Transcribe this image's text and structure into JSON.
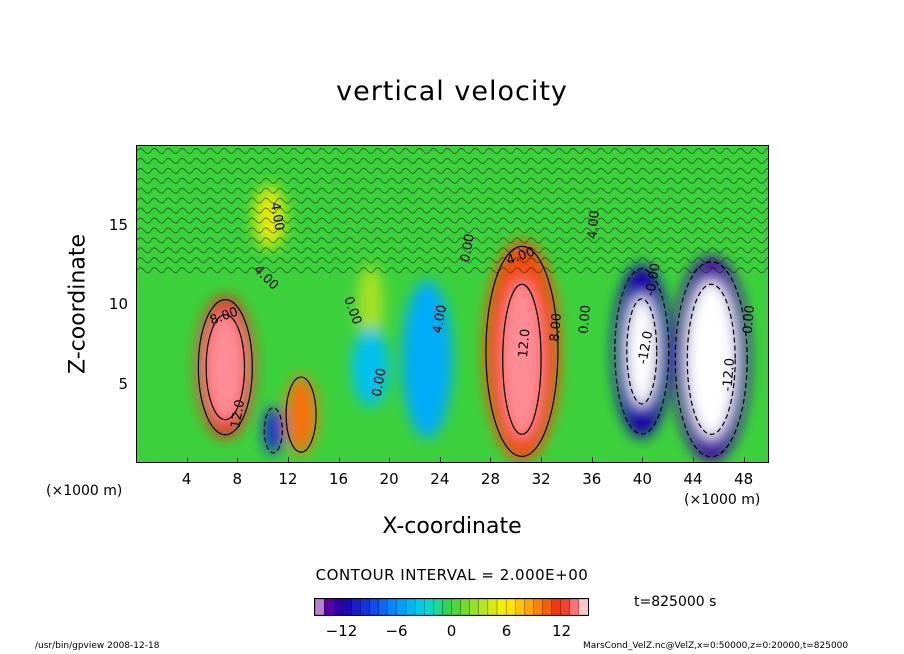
{
  "chart_data": {
    "type": "heatmap",
    "title": "vertical velocity",
    "xlabel": "X-coordinate",
    "ylabel": "Z-coordinate",
    "x_unit": "(×1000 m)",
    "y_unit": "(×1000 m)",
    "xlim": [
      0,
      50
    ],
    "ylim": [
      0,
      20
    ],
    "x_ticks": [
      4,
      8,
      12,
      16,
      20,
      24,
      28,
      32,
      36,
      40,
      44,
      48
    ],
    "y_ticks": [
      5,
      10,
      15
    ],
    "contour_interval_text": "CONTOUR INTERVAL = 2.000E+00",
    "time_label": "t=825000 s",
    "colorbar": {
      "min": -15,
      "max": 15,
      "ticks": [
        -12,
        -6,
        0,
        6,
        12
      ]
    },
    "cells": [
      {
        "x": 7,
        "z": 6,
        "w": 4.5,
        "h": 9,
        "value": 12
      },
      {
        "x": 7,
        "z": 6,
        "w": 3.2,
        "h": 7,
        "value": 14
      },
      {
        "x": 13,
        "z": 3,
        "w": 2.5,
        "h": 5,
        "value": 10
      },
      {
        "x": 10.8,
        "z": 2,
        "w": 1.5,
        "h": 3,
        "value": -10
      },
      {
        "x": 10.5,
        "z": 15.5,
        "w": 2.4,
        "h": 4,
        "value": 5
      },
      {
        "x": 18.5,
        "z": 10,
        "w": 2,
        "h": 5,
        "value": 3
      },
      {
        "x": 18.5,
        "z": 6,
        "w": 3,
        "h": 5,
        "value": -4
      },
      {
        "x": 23,
        "z": 6.5,
        "w": 4,
        "h": 10,
        "value": -5
      },
      {
        "x": 30.5,
        "z": 7,
        "w": 6,
        "h": 14,
        "value": 11
      },
      {
        "x": 30.5,
        "z": 6.5,
        "w": 3.2,
        "h": 10,
        "value": 14
      },
      {
        "x": 40,
        "z": 7,
        "w": 4.5,
        "h": 11,
        "value": -12
      },
      {
        "x": 45.5,
        "z": 6.5,
        "w": 6,
        "h": 13,
        "value": -13
      },
      {
        "x": 45.5,
        "z": 6.5,
        "w": 4,
        "h": 10,
        "value": -15
      },
      {
        "x": 40,
        "z": 7,
        "w": 2.5,
        "h": 7,
        "value": -15
      }
    ],
    "contour_labels": [
      {
        "text": "4.00",
        "x": 10.8,
        "z": 15.5,
        "rotate": 80
      },
      {
        "text": "4.00",
        "x": 10,
        "z": 11.5,
        "rotate": 45
      },
      {
        "text": "8.00",
        "x": 7,
        "z": 9,
        "rotate": -20
      },
      {
        "text": "12.0",
        "x": 8.3,
        "z": 3,
        "rotate": -80
      },
      {
        "text": "0.00",
        "x": 16.8,
        "z": 9.5,
        "rotate": 70
      },
      {
        "text": "0.00",
        "x": 19.5,
        "z": 5,
        "rotate": -80
      },
      {
        "text": "4.00",
        "x": 24.3,
        "z": 9,
        "rotate": -80
      },
      {
        "text": "0.00",
        "x": 26.5,
        "z": 13.5,
        "rotate": -80
      },
      {
        "text": "4.00",
        "x": 30.5,
        "z": 12.8,
        "rotate": -20
      },
      {
        "text": "12.0",
        "x": 31,
        "z": 7.5,
        "rotate": -85
      },
      {
        "text": "8.00",
        "x": 33.5,
        "z": 8.5,
        "rotate": -85
      },
      {
        "text": "0.00",
        "x": 35.8,
        "z": 9,
        "rotate": -85
      },
      {
        "text": "4.00",
        "x": 36.5,
        "z": 15,
        "rotate": -85
      },
      {
        "text": "-0.00",
        "x": 41.2,
        "z": 11.5,
        "rotate": -80
      },
      {
        "text": "-12.0",
        "x": 40.6,
        "z": 7.2,
        "rotate": -80
      },
      {
        "text": "-12.0",
        "x": 47.2,
        "z": 5.5,
        "rotate": -85
      },
      {
        "text": "0.00",
        "x": 48.8,
        "z": 9,
        "rotate": -85
      }
    ]
  },
  "footer": {
    "left": "/usr/bin/gpview  2008-12-18",
    "right": "MarsCond_VelZ.nc@VelZ,x=0:50000,z=0:20000,t=825000"
  }
}
